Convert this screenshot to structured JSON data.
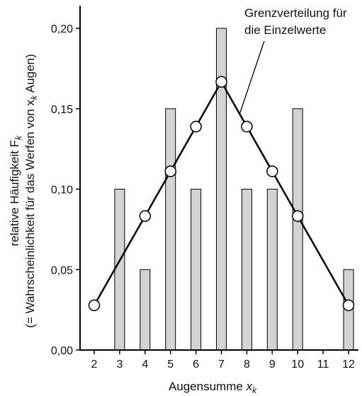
{
  "chart_data": {
    "type": "bar",
    "title": "",
    "xlabel": "Augensumme",
    "xlabel_sub": "k",
    "ylabel_line1": "relative Häufigkeit F",
    "ylabel_line1_sub": "k",
    "ylabel_line2": "(= Wahrscheinlichkeit für das Werfen von x",
    "ylabel_line2_sub": "k",
    "ylabel_line2_end": " Augen)",
    "x_categories": [
      2,
      3,
      4,
      5,
      6,
      7,
      8,
      9,
      10,
      11,
      12
    ],
    "x_tick_labels": [
      "2",
      "3",
      "4",
      "5",
      "6",
      "7",
      "8",
      "9",
      "10",
      "11",
      "12"
    ],
    "ylim": [
      0,
      0.21
    ],
    "y_ticks": [
      0,
      0.05,
      0.1,
      0.15,
      0.2
    ],
    "y_tick_labels": [
      "0,00",
      "0,05",
      "0,10",
      "0,15",
      "0,20"
    ],
    "grid": false,
    "bars": {
      "name": "",
      "color": "#d3d3d3",
      "values": [
        0,
        0.1,
        0.05,
        0.15,
        0.1,
        0.2,
        0.1,
        0.1,
        0.15,
        0,
        0.05
      ]
    },
    "line": {
      "name": "Grenzverteilung für die Einzelwerte",
      "color": "#000000",
      "x": [
        2,
        3,
        4,
        5,
        6,
        7,
        8,
        9,
        10,
        11,
        12
      ],
      "values": [
        0.0278,
        0.0556,
        0.0833,
        0.1111,
        0.1389,
        0.1667,
        0.1389,
        0.1111,
        0.0833,
        0.0556,
        0.0278
      ],
      "markers_at": [
        2,
        4,
        5,
        6,
        7,
        8,
        9,
        10,
        12
      ]
    },
    "annotation": {
      "line1": "Grenzverteilung für",
      "line2": "die Einzelwerte"
    }
  }
}
